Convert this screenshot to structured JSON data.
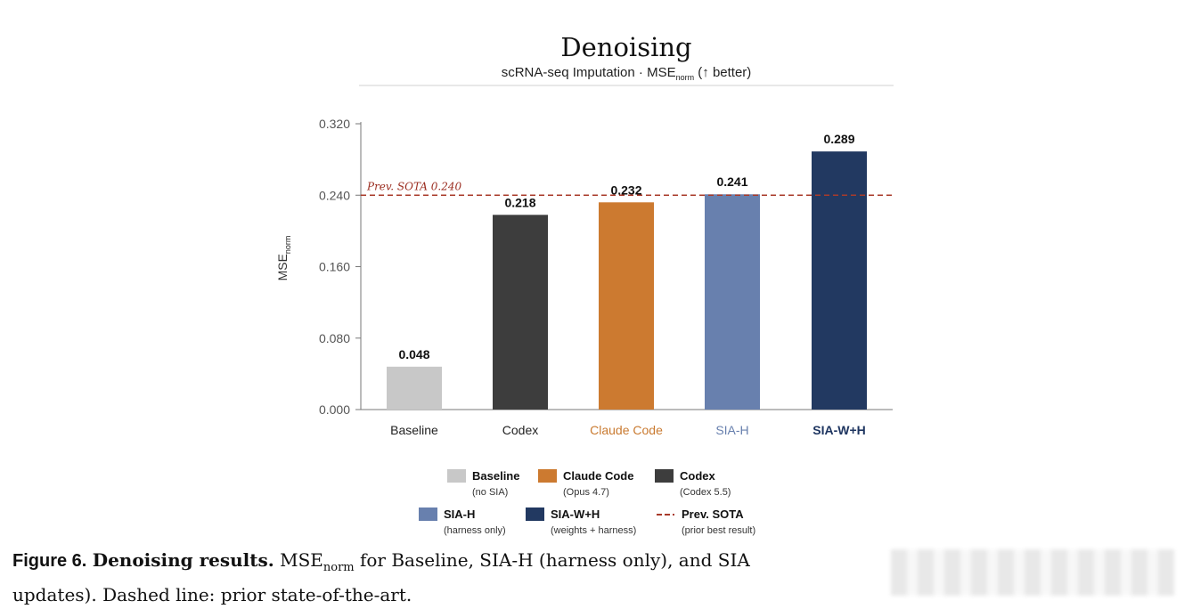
{
  "chart_data": {
    "type": "bar",
    "title": "Denoising",
    "subtitle": {
      "prefix": "scRNA-seq Imputation · MSE",
      "subscript": "norm",
      "suffix": " (↑ better)"
    },
    "ylabel": "MSE",
    "ylabel_subscript": "norm",
    "ylim": [
      0,
      0.32
    ],
    "yticks": [
      "0.000",
      "0.080",
      "0.160",
      "0.240",
      "0.320"
    ],
    "ytick_values": [
      0,
      0.08,
      0.16,
      0.24,
      0.32
    ],
    "categories": [
      "Baseline",
      "Codex",
      "Claude Code",
      "SIA-H",
      "SIA-W+H"
    ],
    "values": [
      0.048,
      0.218,
      0.232,
      0.241,
      0.289
    ],
    "value_labels": [
      "0.048",
      "0.218",
      "0.232",
      "0.241",
      "0.289"
    ],
    "bar_colors": [
      "#c8c8c8",
      "#3d3d3d",
      "#cc7a30",
      "#6880ae",
      "#223961"
    ],
    "category_label_colors": [
      "#222222",
      "#222222",
      "#c97a30",
      "#6880ae",
      "#1e3560"
    ],
    "reference_line": {
      "label": "Prev. SOTA  0.240",
      "value": 0.24,
      "color": "#a83a2a",
      "style": "dashed"
    },
    "grid": false,
    "legend": {
      "placement": "bottom",
      "items": [
        {
          "name": "Baseline",
          "desc": "(no SIA)",
          "color": "#c8c8c8",
          "marker": "box"
        },
        {
          "name": "Claude Code",
          "desc": "(Opus 4.7)",
          "color": "#cc7a30",
          "marker": "box"
        },
        {
          "name": "Codex",
          "desc": "(Codex 5.5)",
          "color": "#3d3d3d",
          "marker": "box"
        },
        {
          "name": "SIA-H",
          "desc": "(harness only)",
          "color": "#6880ae",
          "marker": "box"
        },
        {
          "name": "SIA-W+H",
          "desc": "(weights + harness)",
          "color": "#223961",
          "marker": "box"
        },
        {
          "name": "Prev. SOTA",
          "desc": "(prior best result)",
          "color": "#a83a2a",
          "marker": "dash"
        }
      ]
    }
  },
  "caption": {
    "figure_number": "Figure 6.",
    "figure_title": "Denoising results.",
    "text_prefix": "MSE",
    "text_subscript": "norm",
    "text_body": " for Baseline, SIA-H (harness only), and SIA",
    "text_line2": "updates). Dashed line: prior state-of-the-art."
  }
}
